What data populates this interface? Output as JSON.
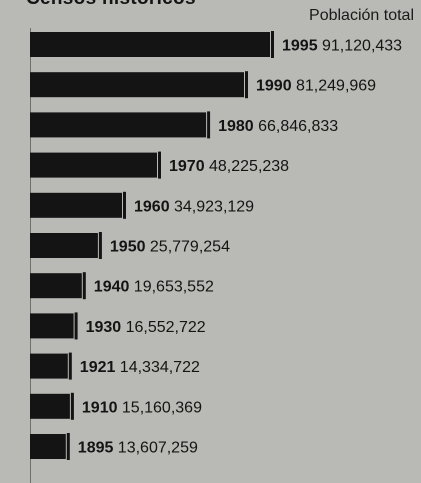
{
  "headline": "Censos históricos",
  "chart_data": {
    "type": "bar",
    "orientation": "horizontal",
    "title": "",
    "series_title": "Población total",
    "xlabel": "",
    "ylabel": "",
    "grid": false,
    "categories": [
      "1995",
      "1990",
      "1980",
      "1970",
      "1960",
      "1950",
      "1940",
      "1930",
      "1921",
      "1910",
      "1895"
    ],
    "values": [
      91120433,
      81249969,
      66846833,
      48225238,
      34923129,
      25779254,
      19653552,
      16552722,
      14334722,
      15160369,
      13607259
    ],
    "value_labels": [
      "91,120,433",
      "81,249,969",
      "66,846,833",
      "48,225,238",
      "34,923,129",
      "25,779,254",
      "19,653,552",
      "16,552,722",
      "14,334,722",
      "15,160,369",
      "13,607,259"
    ],
    "colors": {
      "bar": "#141414",
      "background": "#b9b9b5",
      "text": "#141414"
    }
  }
}
